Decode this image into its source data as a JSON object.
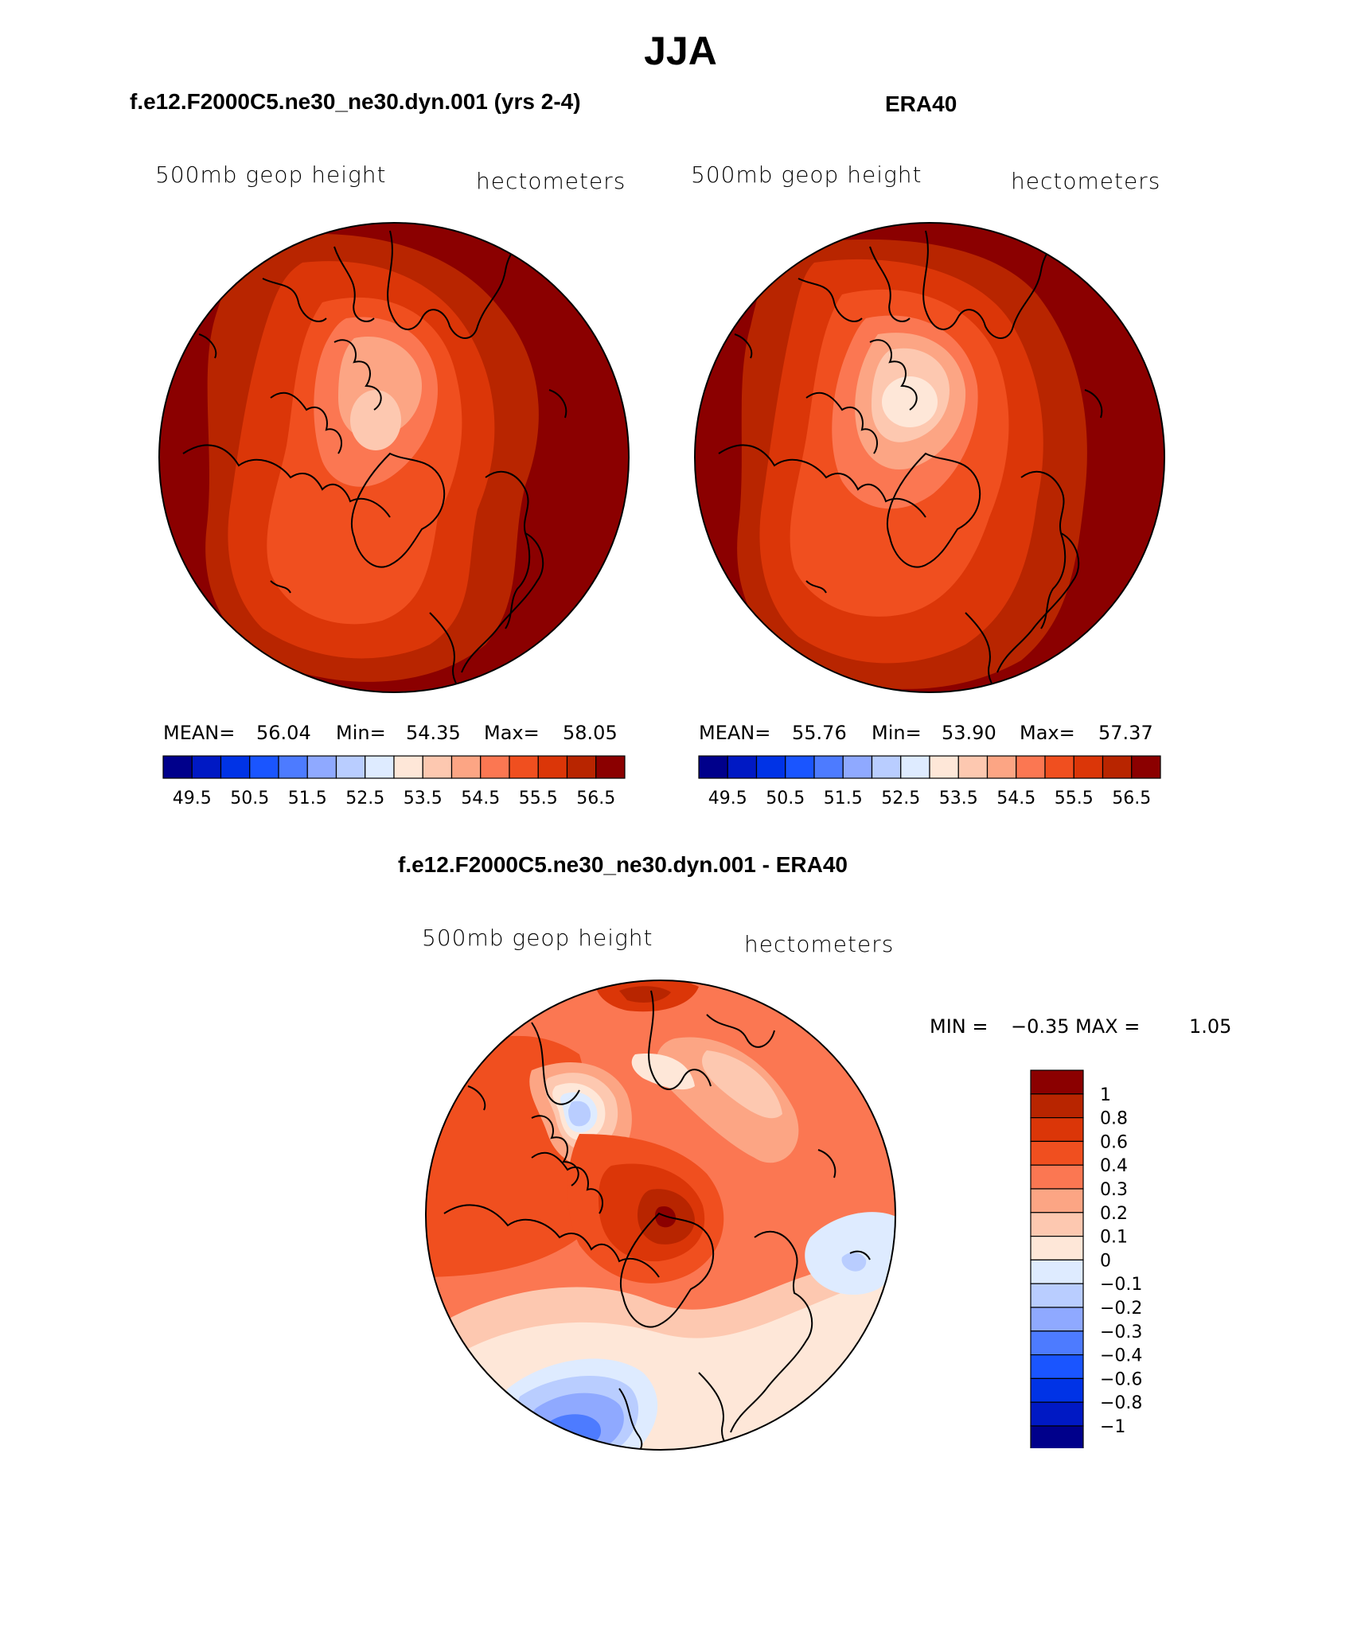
{
  "main_title": "JJA",
  "colors": {
    "hgt_palette": [
      "#00008b",
      "#0019c4",
      "#0033e6",
      "#1a55ff",
      "#4d7bff",
      "#8fa9ff",
      "#b9cdff",
      "#deebff",
      "#fee7d8",
      "#fdc8b0",
      "#fca584",
      "#fb7752",
      "#f04f1f",
      "#db3608",
      "#b82500",
      "#8b0000"
    ],
    "diff_palette": [
      "#00008b",
      "#0019c4",
      "#0033e6",
      "#1a55ff",
      "#4d7bff",
      "#8fa9ff",
      "#b9cdff",
      "#deebff",
      "#fee7d8",
      "#fdc8b0",
      "#fca584",
      "#fb7752",
      "#f04f1f",
      "#db3608",
      "#b82500",
      "#8b0000"
    ]
  },
  "chart_data": [
    {
      "type": "heatmap",
      "id": "model",
      "title": "f.e12.F2000C5.ne30_ne30.dyn.001 (yrs 2-4)",
      "variable": "500mb geop height",
      "units": "hectometers",
      "projection": "north polar stereographic",
      "stats": {
        "mean_label": "MEAN=",
        "mean": "56.04",
        "min_label": "Min=",
        "min": "54.35",
        "max_label": "Max=",
        "max": "58.05"
      },
      "colorbar_ticks": [
        "49.5",
        "50.5",
        "51.5",
        "52.5",
        "53.5",
        "54.5",
        "55.5",
        "56.5"
      ],
      "contour_levels": [
        49.5,
        50,
        50.5,
        51,
        51.5,
        52,
        52.5,
        53,
        53.5,
        54,
        54.5,
        55,
        55.5,
        56,
        56.5
      ]
    },
    {
      "type": "heatmap",
      "id": "era40",
      "title": "ERA40",
      "variable": "500mb geop height",
      "units": "hectometers",
      "projection": "north polar stereographic",
      "stats": {
        "mean_label": "MEAN=",
        "mean": "55.76",
        "min_label": "Min=",
        "min": "53.90",
        "max_label": "Max=",
        "max": "57.37"
      },
      "colorbar_ticks": [
        "49.5",
        "50.5",
        "51.5",
        "52.5",
        "53.5",
        "54.5",
        "55.5",
        "56.5"
      ],
      "contour_levels": [
        49.5,
        50,
        50.5,
        51,
        51.5,
        52,
        52.5,
        53,
        53.5,
        54,
        54.5,
        55,
        55.5,
        56,
        56.5
      ]
    },
    {
      "type": "heatmap",
      "id": "difference",
      "title": "f.e12.F2000C5.ne30_ne30.dyn.001 - ERA40",
      "variable": "500mb geop height",
      "units": "hectometers",
      "projection": "north polar stereographic",
      "stats": {
        "min_label": "MIN =",
        "min": "−0.35",
        "max_label": "MAX =",
        "max": "1.05"
      },
      "colorbar_ticks": [
        "1",
        "0.8",
        "0.6",
        "0.4",
        "0.3",
        "0.2",
        "0.1",
        "0",
        "−0.1",
        "−0.2",
        "−0.3",
        "−0.4",
        "−0.6",
        "−0.8",
        "−1"
      ],
      "contour_levels": [
        -1,
        -0.8,
        -0.6,
        -0.4,
        -0.3,
        -0.2,
        -0.1,
        0,
        0.1,
        0.2,
        0.3,
        0.4,
        0.6,
        0.8,
        1
      ]
    }
  ]
}
